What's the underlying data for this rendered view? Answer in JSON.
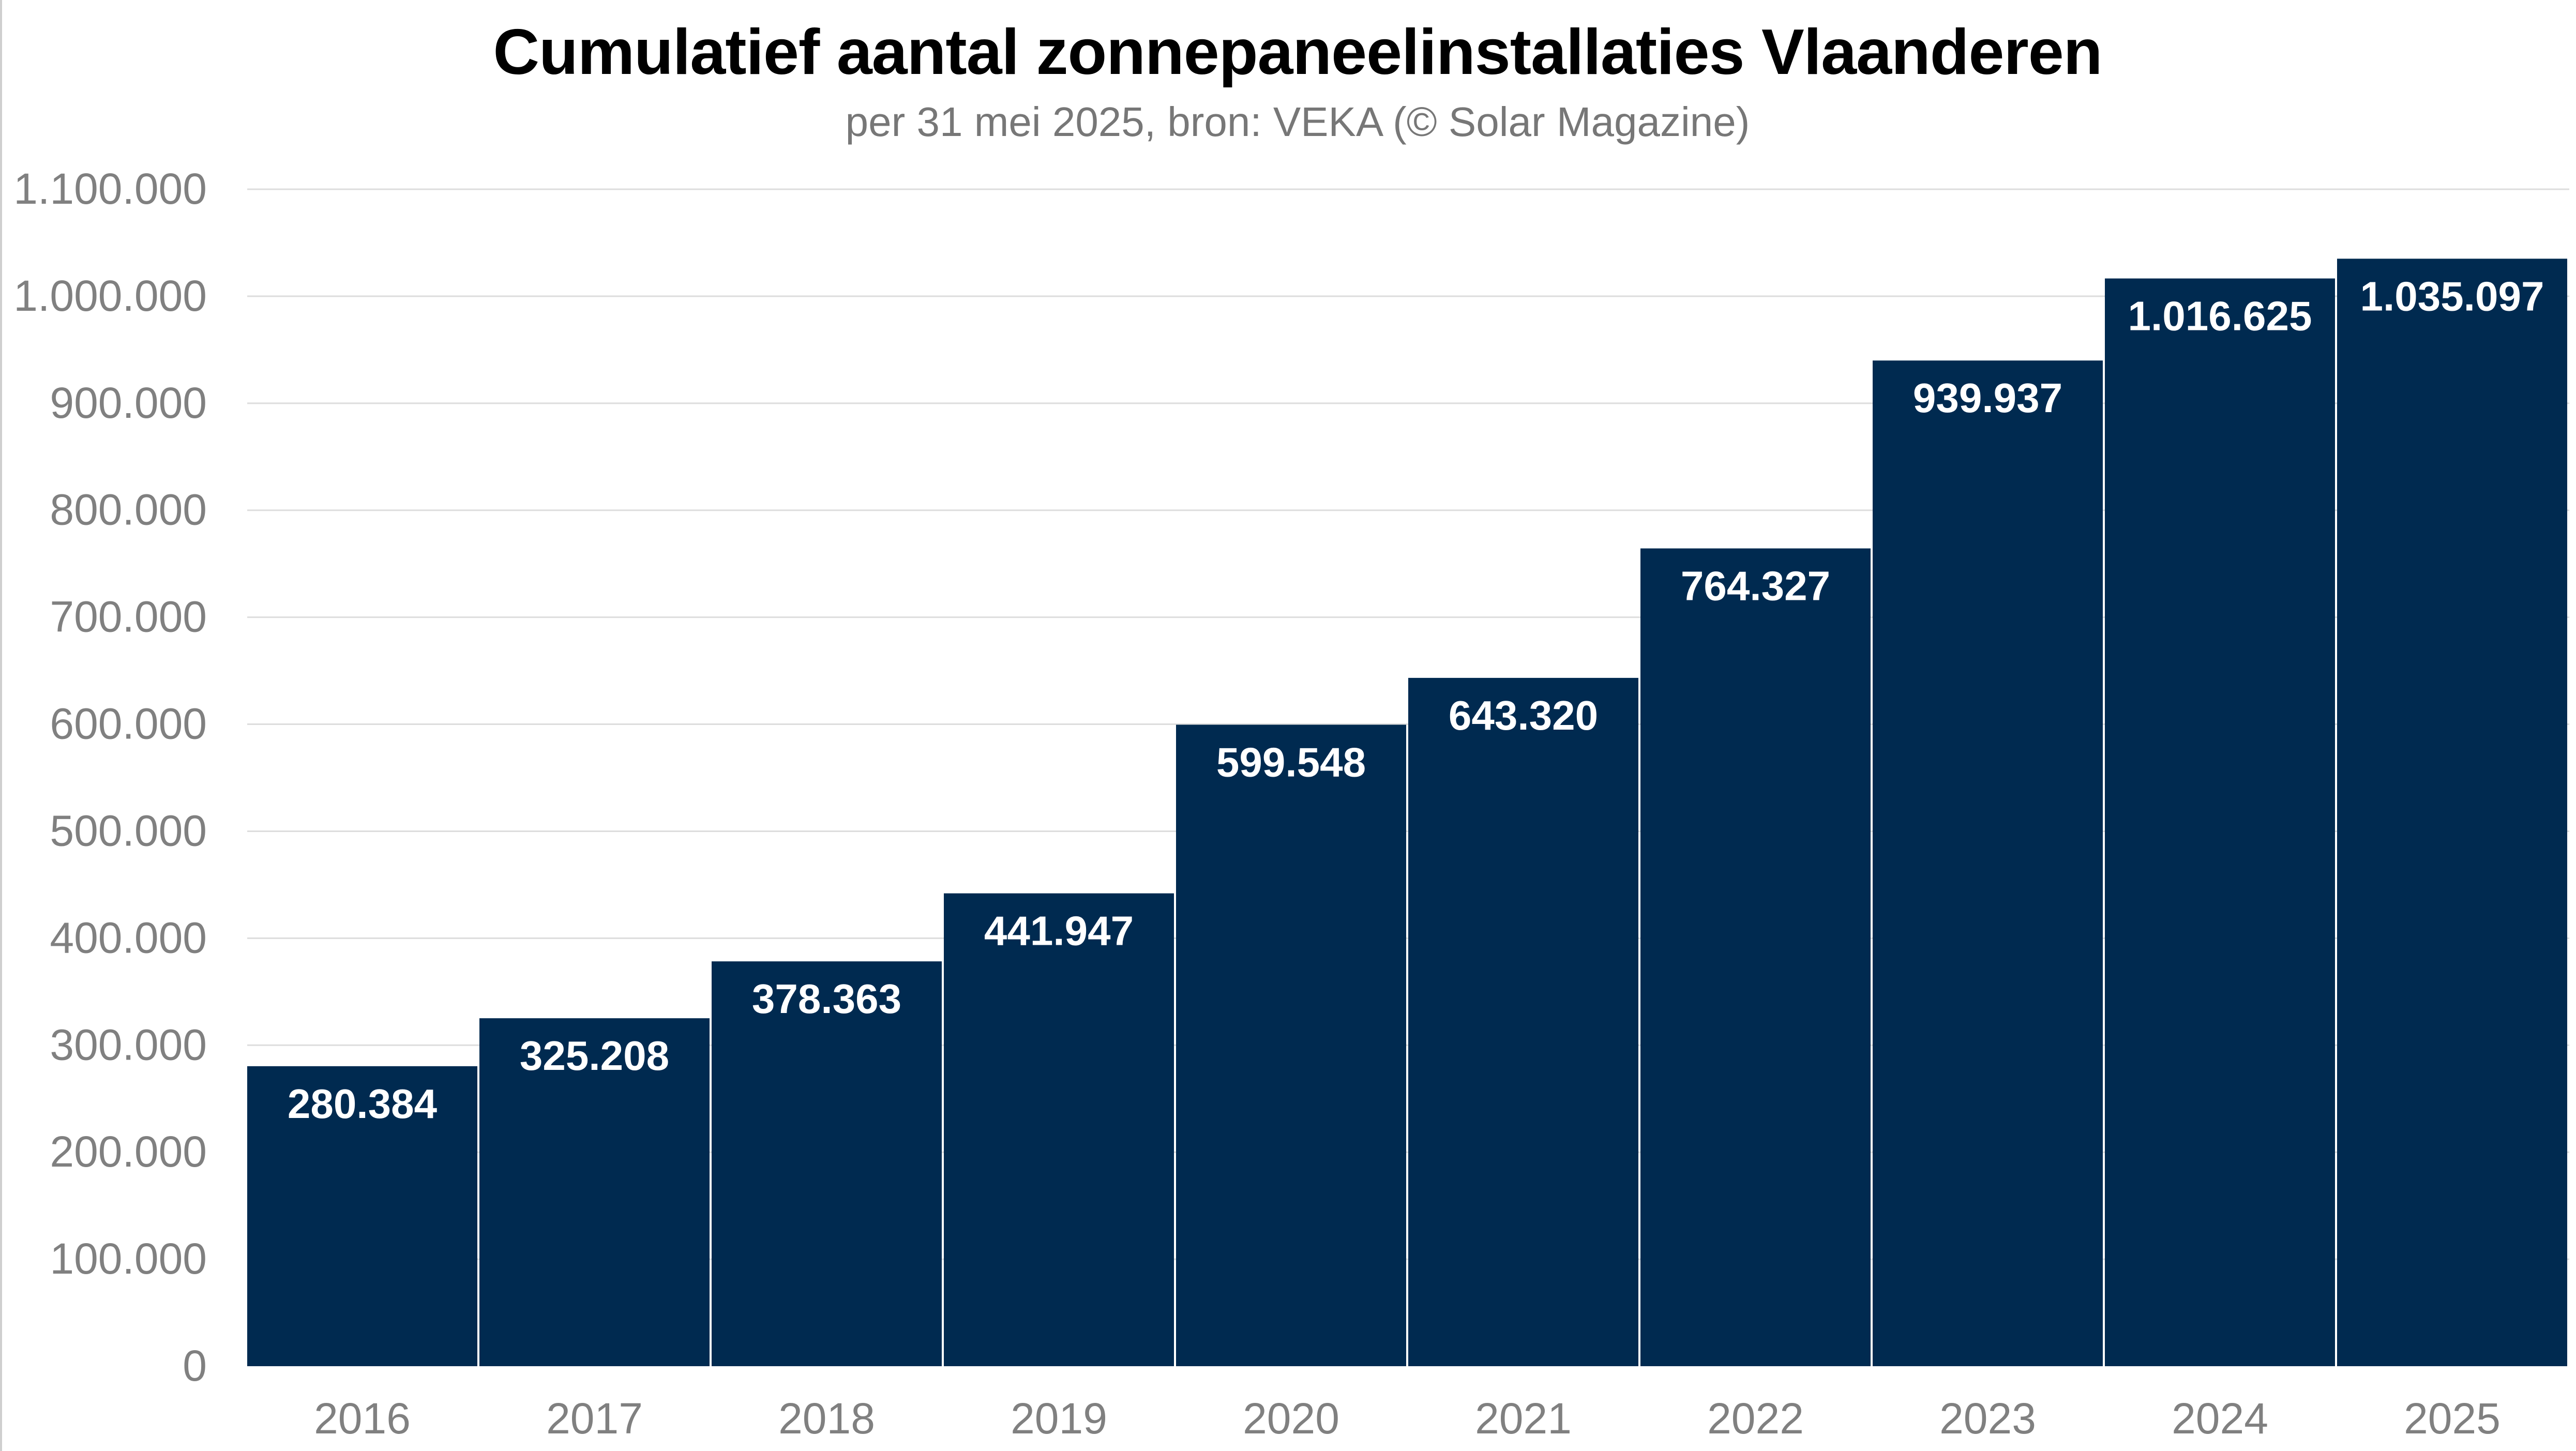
{
  "chart_data": {
    "type": "bar",
    "title": "Cumulatief aantal zonnepaneelinstallaties Vlaanderen",
    "subtitle": "per 31 mei 2025, bron: VEKA (© Solar Magazine)",
    "xlabel": "",
    "ylabel": "",
    "categories": [
      "2016",
      "2017",
      "2018",
      "2019",
      "2020",
      "2021",
      "2022",
      "2023",
      "2024",
      "2025"
    ],
    "values": [
      280384,
      325208,
      378363,
      441947,
      599548,
      643320,
      764327,
      939937,
      1016625,
      1035097
    ],
    "data_labels": [
      "280.384",
      "325.208",
      "378.363",
      "441.947",
      "599.548",
      "643.320",
      "764.327",
      "939.937",
      "1.016.625",
      "1.035.097"
    ],
    "ylim": [
      0,
      1100000
    ],
    "yticks": [
      0,
      100000,
      200000,
      300000,
      400000,
      500000,
      600000,
      700000,
      800000,
      900000,
      1000000,
      1100000
    ],
    "ytick_labels": [
      "0",
      "100.000",
      "200.000",
      "300.000",
      "400.000",
      "500.000",
      "600.000",
      "700.000",
      "800.000",
      "900.000",
      "1.000.000",
      "1.100.000"
    ],
    "grid": true,
    "legend": "none",
    "colors": {
      "bar": "#002a50",
      "grid": "#dddddd",
      "tick_text": "#808080",
      "label_text": "#ffffff"
    }
  }
}
